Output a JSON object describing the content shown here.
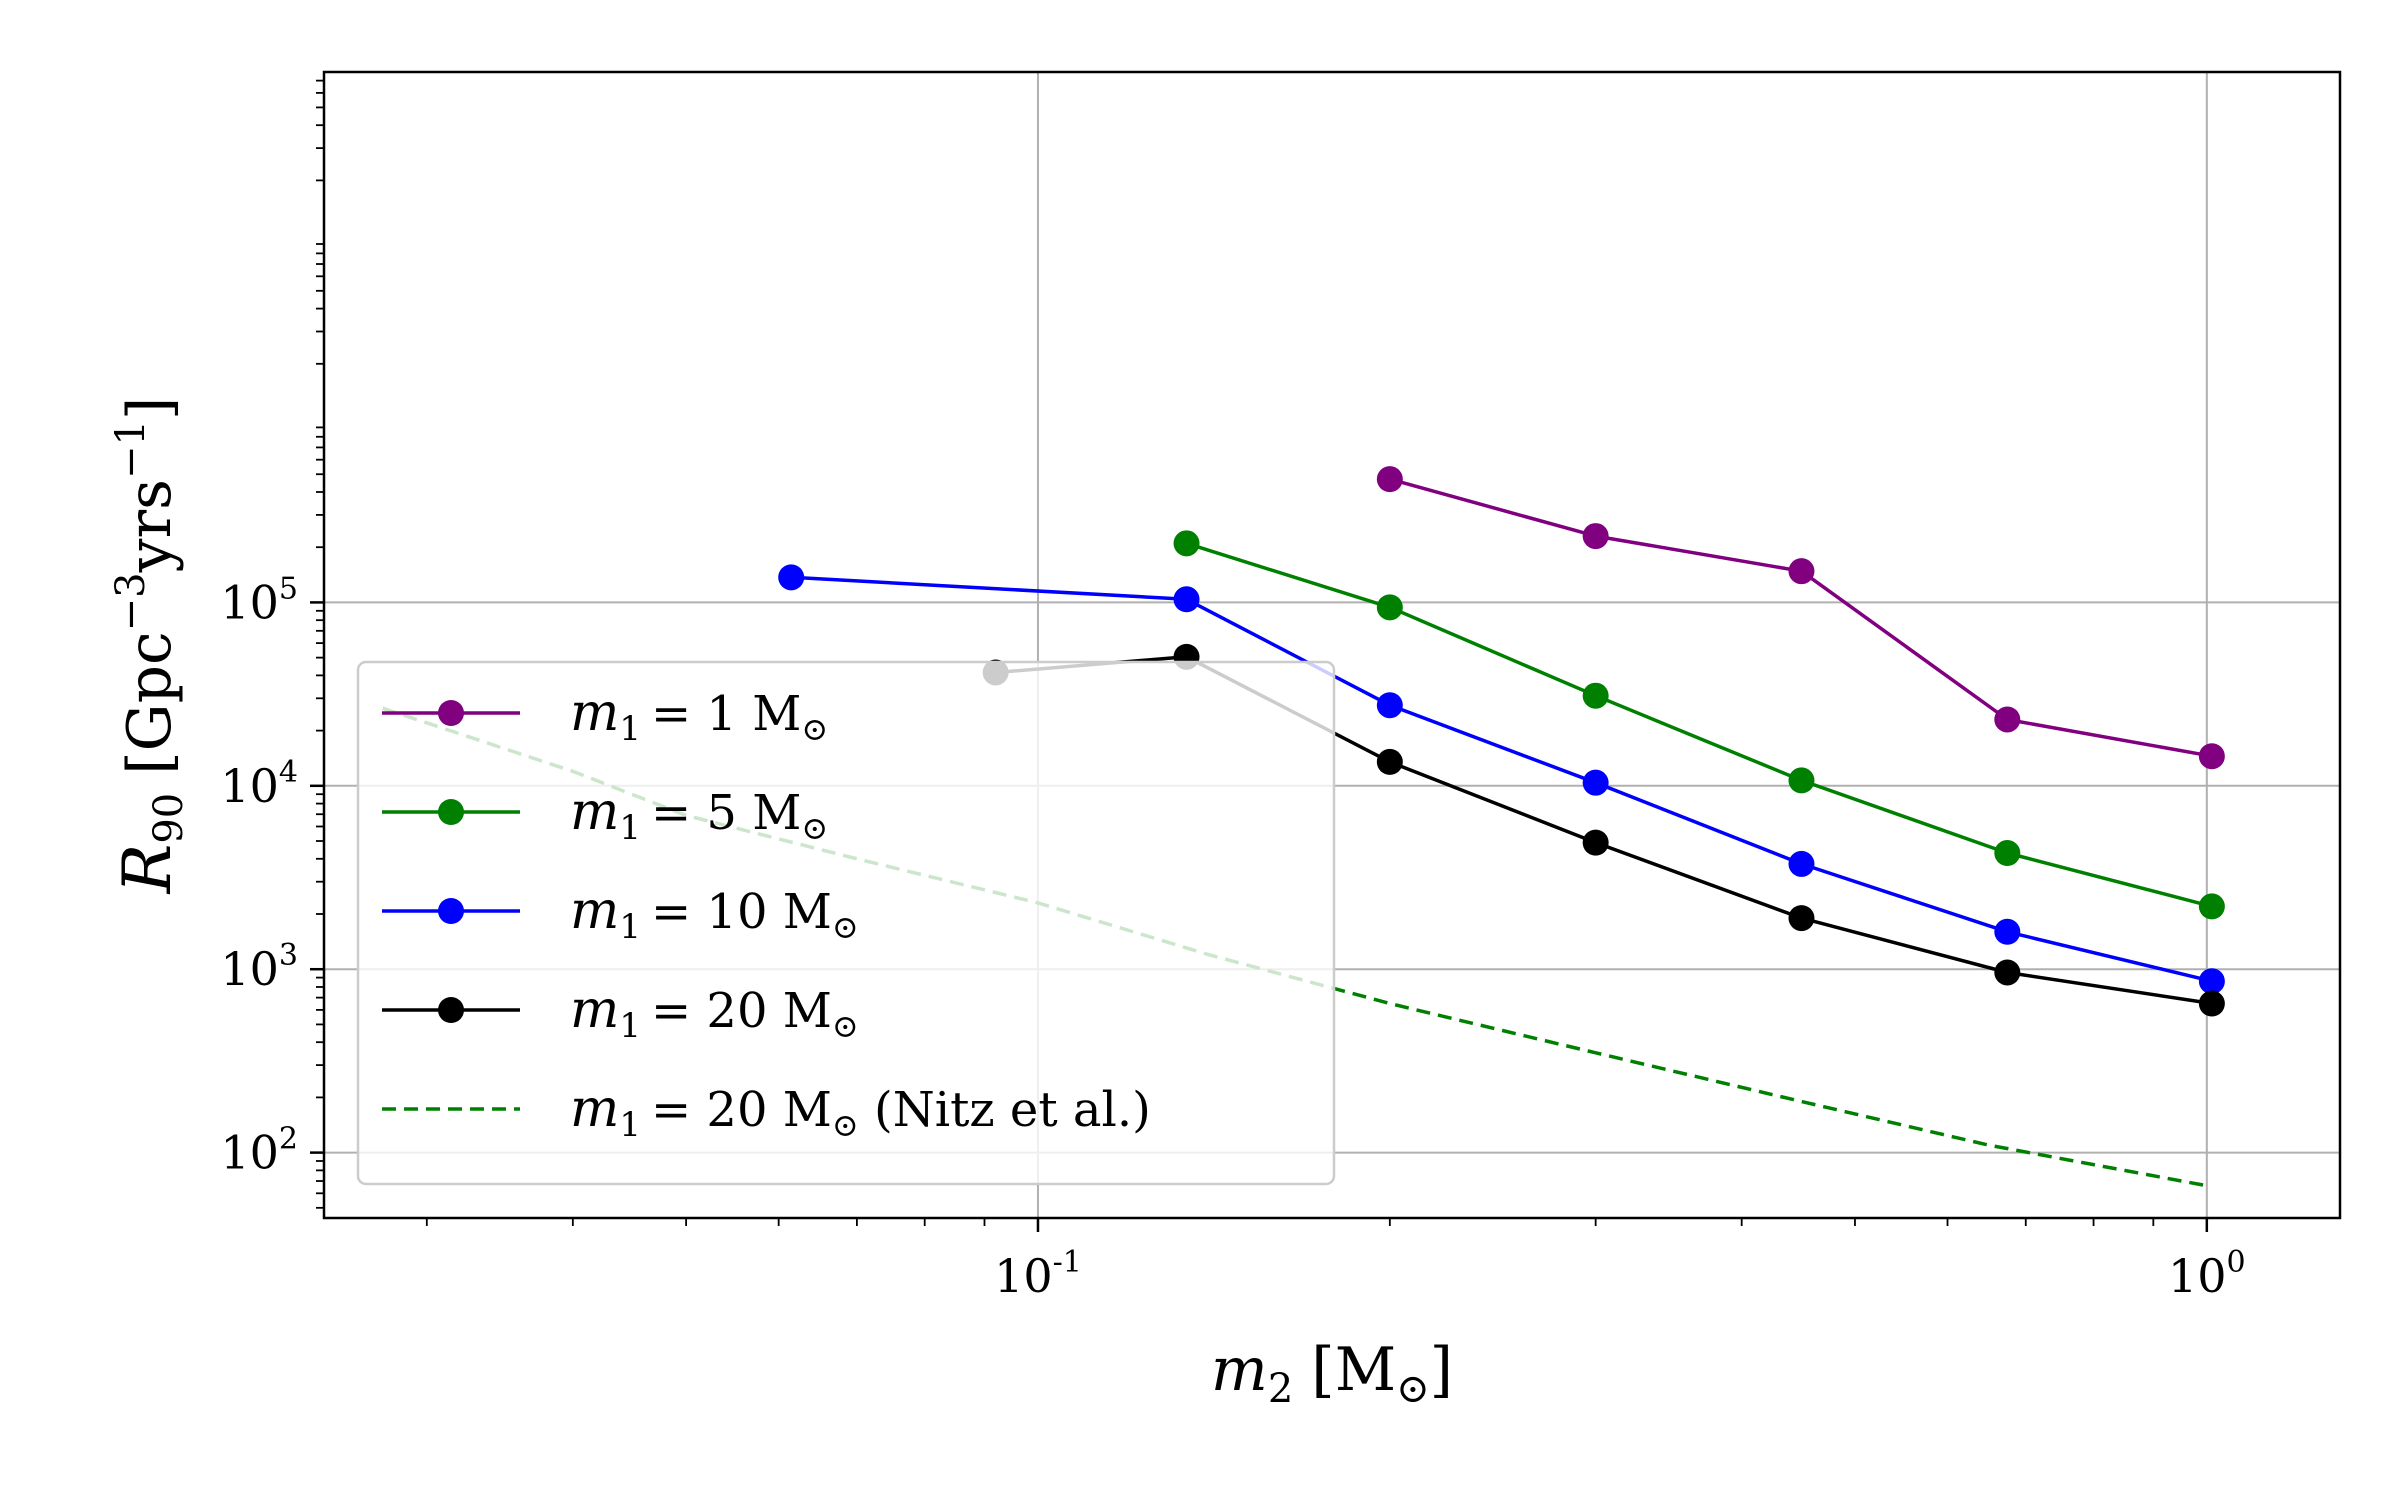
{
  "chart_data": {
    "type": "line",
    "xscale": "log",
    "yscale": "log",
    "xlim": [
      0.0245,
      1.3
    ],
    "ylim": [
      44,
      78000000
    ],
    "grid": true,
    "legend_position": "lower-left",
    "x_ticks": [
      {
        "value": 0.1,
        "base": "10",
        "exp": "-1"
      },
      {
        "value": 1.0,
        "base": "10",
        "exp": "0"
      }
    ],
    "y_ticks": [
      {
        "value": 100,
        "base": "10",
        "exp": "2"
      },
      {
        "value": 1000,
        "base": "10",
        "exp": "3"
      },
      {
        "value": 10000,
        "base": "10",
        "exp": "4"
      },
      {
        "value": 100000,
        "base": "10",
        "exp": "5"
      }
    ],
    "xlabel": {
      "main": "m",
      "sub": "2",
      "unit": "[M",
      "sun": "⊙",
      "close": "]"
    },
    "ylabel": {
      "main": "R",
      "sub": "90",
      "unit": "[Gpc",
      "exp1": "−3",
      "mid": "yrs",
      "exp2": "−1",
      "close": "]"
    },
    "series": [
      {
        "name": "m1 = 1 M☉",
        "label_main": "m",
        "label_sub": "1",
        "label_rest": "=  1 M",
        "label_sun": "⊙",
        "label_tail": "",
        "color": "#800080",
        "style": "solid",
        "markers": true,
        "x": [
          0.2,
          0.3,
          0.45,
          0.675,
          1.01
        ],
        "y": [
          470000,
          230000,
          148000,
          23000,
          14500
        ]
      },
      {
        "name": "m1 = 5 M☉",
        "label_main": "m",
        "label_sub": "1",
        "label_rest": "=  5 M",
        "label_sun": "⊙",
        "label_tail": "",
        "color": "#008000",
        "style": "solid",
        "markers": true,
        "x": [
          0.134,
          0.2,
          0.3,
          0.45,
          0.675,
          1.01
        ],
        "y": [
          210000,
          94000,
          31000,
          10700,
          4300,
          2200
        ]
      },
      {
        "name": "m1 = 10 M☉",
        "label_main": "m",
        "label_sub": "1",
        "label_rest": "=  10 M",
        "label_sun": "⊙",
        "label_tail": "",
        "color": "#0000ff",
        "style": "solid",
        "markers": true,
        "x": [
          0.0615,
          0.134,
          0.2,
          0.3,
          0.45,
          0.675,
          1.01
        ],
        "y": [
          137000,
          104000,
          27500,
          10400,
          3750,
          1600,
          860
        ]
      },
      {
        "name": "m1 = 20 M☉",
        "label_main": "m",
        "label_sub": "1",
        "label_rest": "=  20 M",
        "label_sun": "⊙",
        "label_tail": "",
        "color": "#000000",
        "style": "solid",
        "markers": true,
        "x": [
          0.092,
          0.134,
          0.2,
          0.3,
          0.45,
          0.675,
          1.01
        ],
        "y": [
          41500,
          50500,
          13500,
          4900,
          1900,
          960,
          650
        ]
      },
      {
        "name": "m1 = 20 M☉ (Nitz et al.)",
        "label_main": "m",
        "label_sub": "1",
        "label_rest": "= 20 M",
        "label_sun": "⊙",
        "label_tail": " (Nitz et al.)",
        "color": "#008000",
        "style": "dashed",
        "markers": false,
        "x": [
          0.0275,
          0.04,
          0.05,
          0.07,
          0.1,
          0.14,
          0.2,
          0.3,
          0.45,
          0.65,
          1.0
        ],
        "y": [
          26500,
          12000,
          6900,
          4000,
          2300,
          1200,
          650,
          350,
          190,
          110,
          66
        ]
      }
    ]
  }
}
